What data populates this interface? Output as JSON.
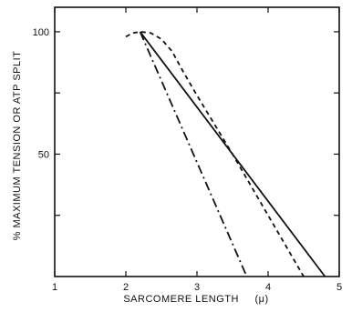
{
  "chart_data": {
    "type": "line",
    "title": "",
    "xlabel": "SARCOMERE LENGTH",
    "xunit": "(μ)",
    "ylabel": "% MAXIMUM TENSION OR ATP SPLIT",
    "xlim": [
      1,
      5
    ],
    "ylim": [
      0,
      110
    ],
    "xticks": [
      1,
      2,
      3,
      4,
      5
    ],
    "yticks": [
      50,
      100
    ],
    "grid": false,
    "series": [
      {
        "style": "solid",
        "points": [
          [
            2.2,
            100
          ],
          [
            4.8,
            0
          ]
        ]
      },
      {
        "style": "dashed",
        "points": [
          [
            2.0,
            98
          ],
          [
            2.1,
            99.5
          ],
          [
            2.2,
            100
          ],
          [
            2.35,
            99.5
          ],
          [
            2.5,
            97
          ],
          [
            2.65,
            92
          ],
          [
            2.8,
            84
          ],
          [
            3.0,
            74
          ],
          [
            3.25,
            62
          ],
          [
            3.5,
            50
          ],
          [
            3.75,
            37.5
          ],
          [
            4.0,
            25
          ],
          [
            4.25,
            12.5
          ],
          [
            4.5,
            0
          ]
        ]
      },
      {
        "style": "dashdot",
        "points": [
          [
            2.2,
            100
          ],
          [
            3.7,
            0
          ]
        ]
      }
    ]
  }
}
